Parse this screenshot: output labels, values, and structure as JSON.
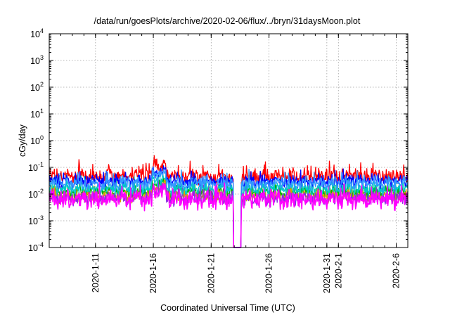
{
  "chart_data": {
    "type": "line",
    "title": "/data/run/goesPlots/archive/2020-02-06/flux/../bryn/31daysMoon.plot",
    "xlabel": "Coordinated Universal Time (UTC)",
    "ylabel": "cGy/day",
    "y_scale": "log",
    "ylim": [
      0.0001,
      10000
    ],
    "y_ticks": [
      {
        "base": "10",
        "exp": "-4"
      },
      {
        "base": "10",
        "exp": "-3"
      },
      {
        "base": "10",
        "exp": "-2"
      },
      {
        "base": "10",
        "exp": "-1"
      },
      {
        "base": "10",
        "exp": "0"
      },
      {
        "base": "10",
        "exp": "1"
      },
      {
        "base": "10",
        "exp": "2"
      },
      {
        "base": "10",
        "exp": "3"
      },
      {
        "base": "10",
        "exp": "4"
      }
    ],
    "xlim": [
      "2020-01-07",
      "2020-02-07"
    ],
    "x_ticks": [
      "2020-1-11",
      "2020-1-16",
      "2020-1-21",
      "2020-1-26",
      "2020-1-31",
      "2020-2-1",
      "2020-2-6"
    ],
    "grid": true,
    "colors": [
      "#ff0000",
      "#00b000",
      "#0000ff",
      "#00c8c8",
      "#ff00ff",
      "#d9a000",
      "#8a2be2"
    ],
    "series": [
      {
        "color": "#ff0000",
        "typical": 0.045,
        "spread": 0.35
      },
      {
        "color": "#0000ff",
        "typical": 0.03,
        "spread": 0.3
      },
      {
        "color": "#3399ff",
        "typical": 0.025,
        "spread": 0.3
      },
      {
        "color": "#00c8c8",
        "typical": 0.016,
        "spread": 0.3
      },
      {
        "color": "#00b000",
        "typical": 0.012,
        "spread": 0.3
      },
      {
        "color": "#d9a000",
        "typical": 0.008,
        "spread": 0.3
      },
      {
        "color": "#8a2be2",
        "typical": 0.007,
        "spread": 0.35
      },
      {
        "color": "#ff00ff",
        "typical": 0.006,
        "spread": 0.45
      }
    ],
    "events": [
      {
        "date": "2020-01-16",
        "note": "enhancement",
        "peak": 0.1
      },
      {
        "date": "2020-01-23",
        "note": "data dropout",
        "min": 0.0001
      }
    ]
  }
}
